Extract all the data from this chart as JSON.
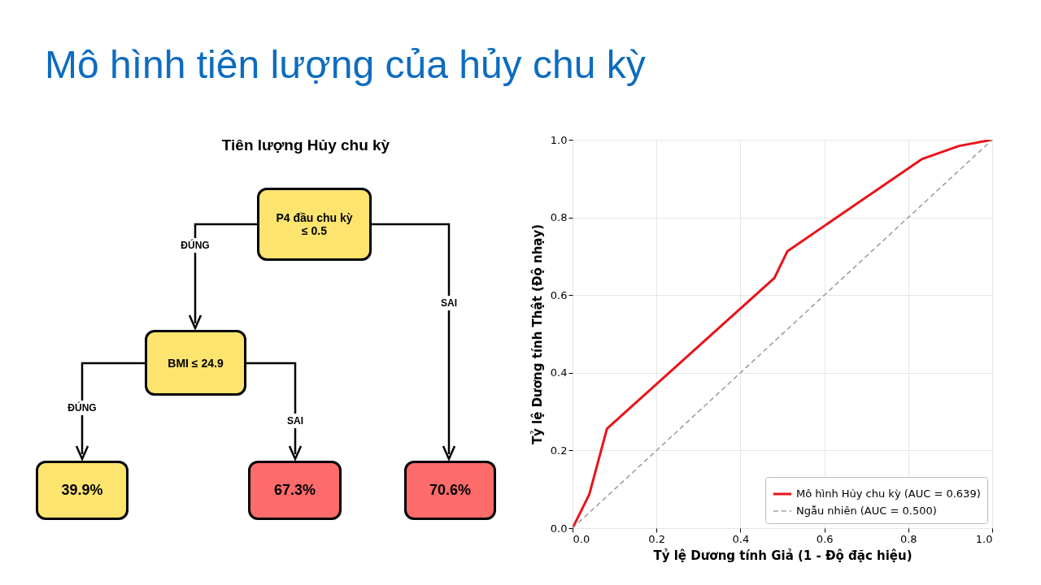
{
  "chart_data": [
    {
      "type": "other",
      "title": "Mô hình tiên lượng của hủy chu kỳ"
    },
    {
      "type": "other",
      "title": "Tiên lượng Hủy chu kỳ",
      "annotations": [
        "P4 đầu chu kỳ ≤ 0.5",
        "ĐÚNG",
        "SAI",
        "BMI ≤ 24.9",
        "ĐÚNG",
        "SAI",
        "39.9%",
        "67.3%",
        "70.6%"
      ]
    },
    {
      "type": "line",
      "xlabel": "Tỷ lệ Dương tính Giả (1 - Độ đặc hiệu)",
      "ylabel": "Tỷ lệ Dương tính Thật (Độ nhạy)",
      "xlim": [
        0,
        1
      ],
      "ylim": [
        0,
        1
      ],
      "xticks": [
        {
          "value": 0,
          "label": "0.0"
        },
        0.2,
        0.4,
        0.6,
        0.8,
        {
          "value": 1,
          "label": "1.0"
        }
      ],
      "yticks": [
        {
          "value": 0,
          "label": "0.0"
        },
        0.2,
        0.4,
        0.6,
        0.8,
        {
          "value": 1,
          "label": "1.0"
        }
      ],
      "grid": true,
      "legend": "bottom right",
      "series": [
        {
          "name": "Mô hình Hủy chu kỳ (AUC = 0.639)",
          "color": "#e8141a",
          "line_style": "solid",
          "x": [
            0,
            0.04,
            0.082,
            0.481,
            0.512,
            0.832,
            0.921,
            1
          ],
          "values": [
            0,
            0.087,
            0.256,
            0.644,
            0.713,
            0.95,
            0.984,
            1
          ]
        },
        {
          "name": "Ngẫu nhiên (AUC = 0.500)",
          "color": "#a0a0a0",
          "line_style": "dashed",
          "x": [
            0,
            1
          ],
          "values": [
            0,
            1
          ]
        }
      ]
    }
  ]
}
